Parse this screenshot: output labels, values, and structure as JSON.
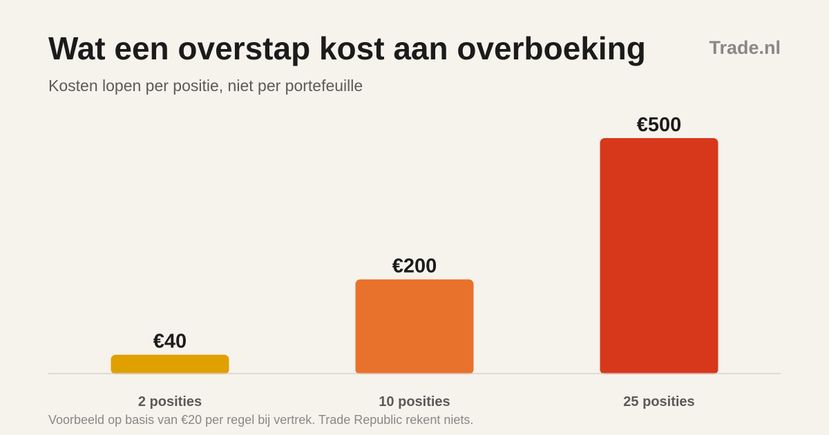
{
  "header": {
    "title": "Wat een overstap kost aan overboeking",
    "subtitle": "Kosten lopen per positie, niet per portefeuille",
    "brand": "Trade.nl"
  },
  "footnote": "Voorbeeld op basis van €20 per regel bij vertrek. Trade Republic rekent niets.",
  "chart_data": {
    "type": "bar",
    "categories": [
      "2 posities",
      "10 posities",
      "25 posities"
    ],
    "values": [
      40,
      200,
      500
    ],
    "value_labels": [
      "€40",
      "€200",
      "€500"
    ],
    "colors": [
      "#e0a000",
      "#e8722c",
      "#d7381c"
    ],
    "ylim": [
      0,
      500
    ],
    "grid": false,
    "legend": "none"
  }
}
